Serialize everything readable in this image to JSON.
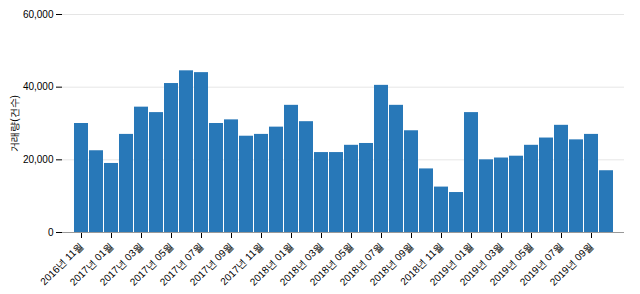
{
  "chart_data": {
    "type": "bar",
    "ylabel": "거래량(건수)",
    "categories": [
      "2016년 11월",
      null,
      "2017년 01월",
      null,
      "2017년 03월",
      null,
      "2017년 05월",
      null,
      "2017년 07월",
      null,
      "2017년 09월",
      null,
      "2017년 11월",
      null,
      "2018년 01월",
      null,
      "2018년 03월",
      null,
      "2018년 05월",
      null,
      "2018년 07월",
      null,
      "2018년 09월",
      null,
      "2018년 11월",
      null,
      "2019년 01월",
      null,
      "2019년 03월",
      null,
      "2019년 05월",
      null,
      "2019년 07월",
      null,
      "2019년 09월",
      null
    ],
    "values": [
      30000,
      22500,
      19000,
      27000,
      34500,
      33000,
      41000,
      44500,
      44000,
      30000,
      31000,
      26500,
      27000,
      29000,
      35000,
      30500,
      22000,
      22000,
      24000,
      24500,
      40500,
      35000,
      28000,
      17500,
      12500,
      11000,
      33000,
      20000,
      20500,
      21000,
      24000,
      26000,
      29500,
      25500,
      27000,
      17000
    ],
    "color": "#2878b8",
    "ylim": [
      0,
      60000
    ],
    "yticks": [
      0,
      {
        "value": 20000,
        "label": "20,000"
      },
      {
        "value": 40000,
        "label": "40,000"
      },
      {
        "value": 60000,
        "label": "60,000"
      }
    ],
    "grid": true
  }
}
